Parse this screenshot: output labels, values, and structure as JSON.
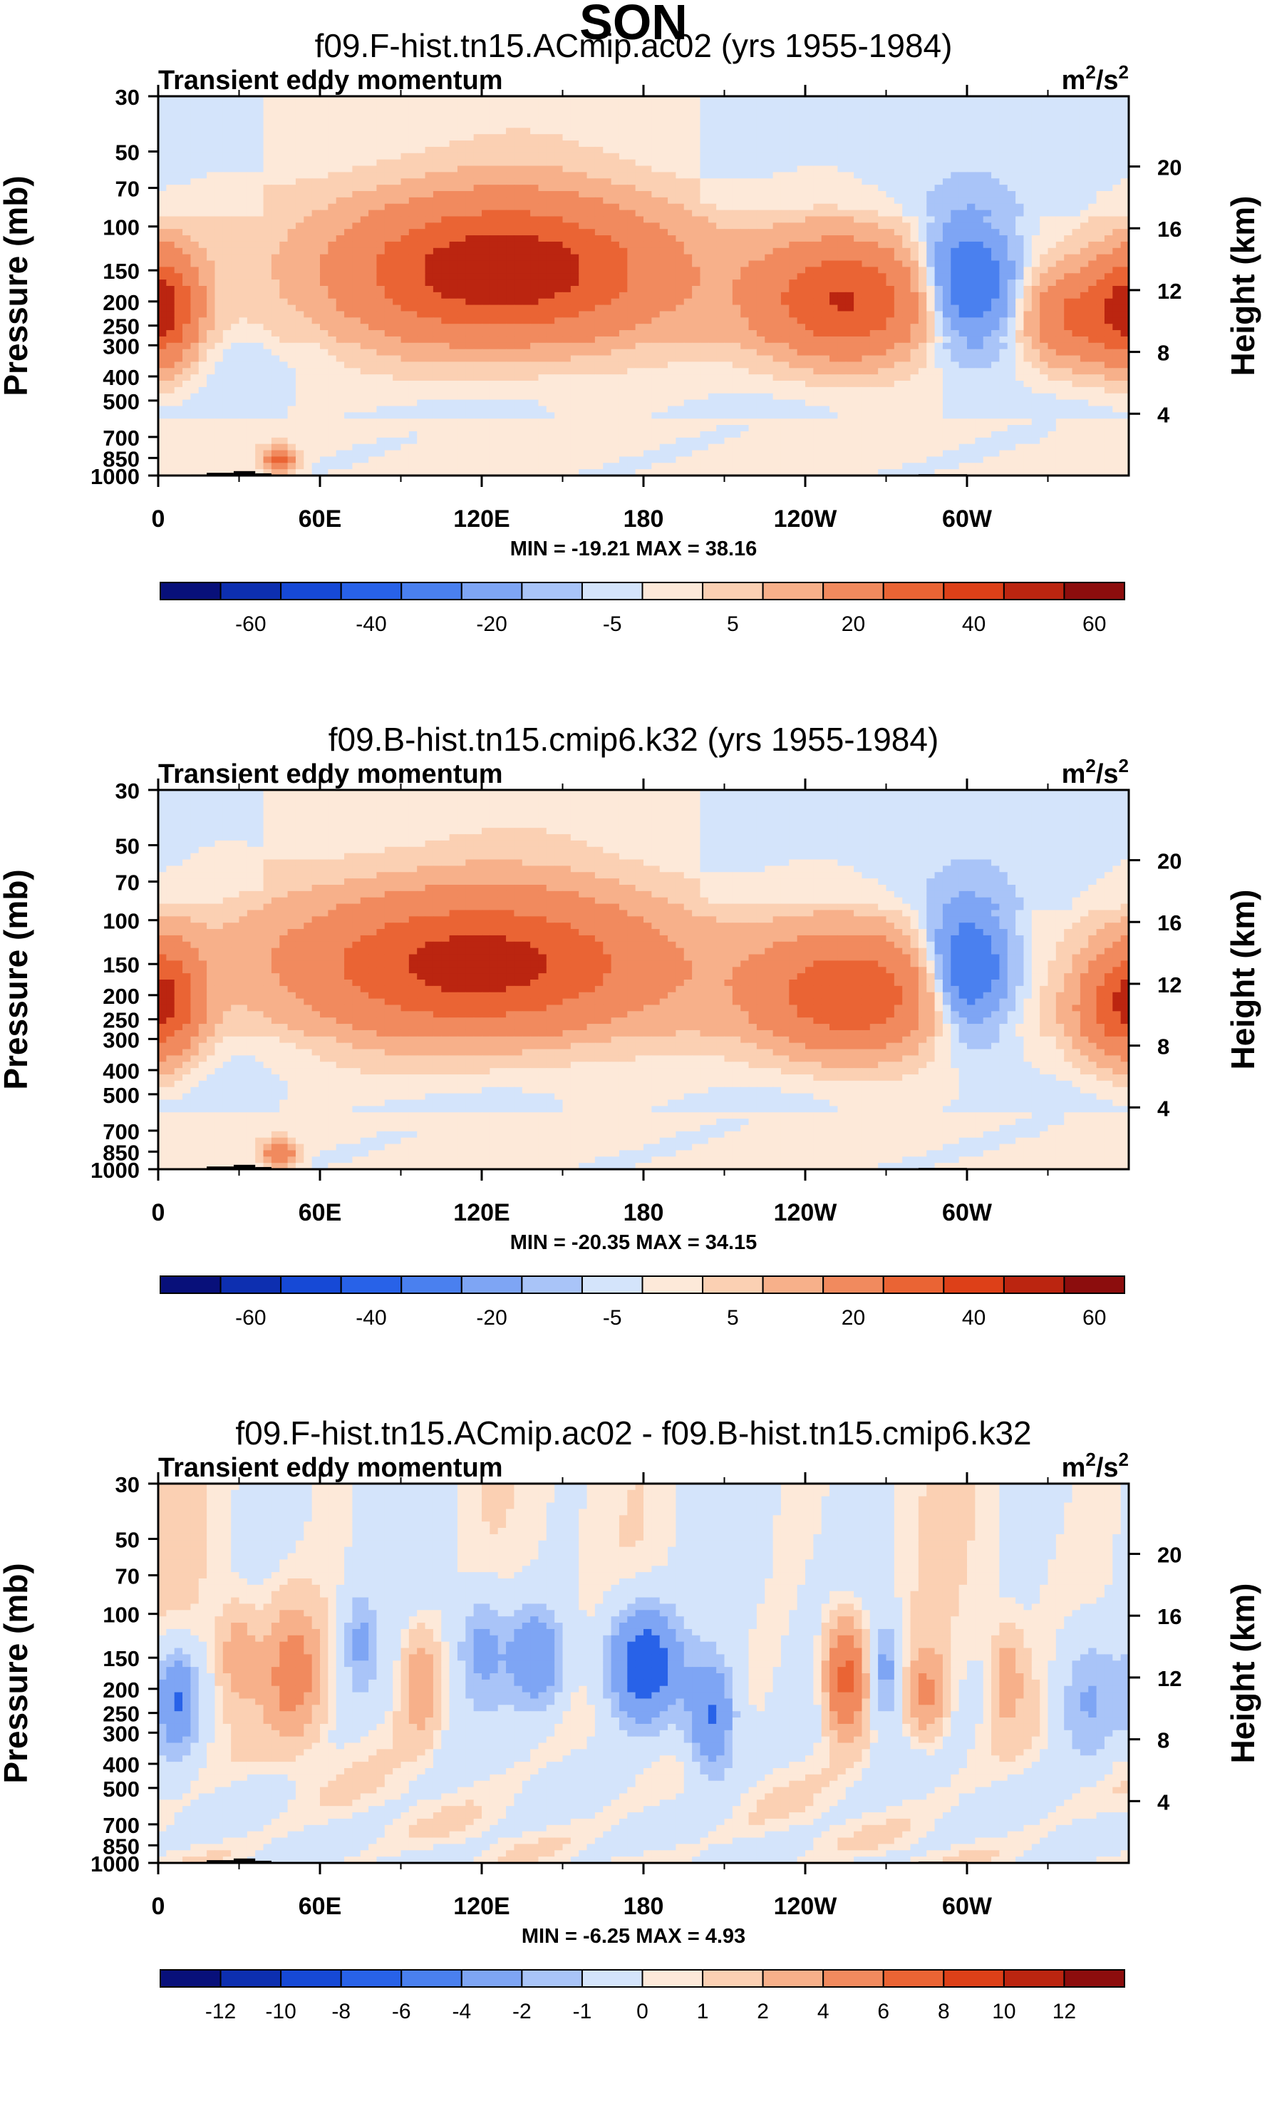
{
  "figure_title": "SON",
  "colors": {
    "blue_scale": [
      "#08107a",
      "#0d2fb0",
      "#1649d6",
      "#2862e8",
      "#4a80ef",
      "#7ea5f4",
      "#a9c4f8",
      "#d4e4fb"
    ],
    "red_scale": [
      "#fde9d9",
      "#fbd0b3",
      "#f7b08a",
      "#f18a5e",
      "#ea6434",
      "#dd4018",
      "#bb2510",
      "#8c0d0d"
    ],
    "frame": "#000000",
    "topography": "#000000"
  },
  "chart_data": [
    {
      "type": "contour",
      "panel_title": "f09.F-hist.tn15.ACmip.ac02 (yrs 1955-1984)",
      "left_title": "Transient eddy momentum",
      "units_base": "m",
      "units_sup1": "2",
      "units_mid": "/s",
      "units_sup2": "2",
      "ylabel": "Pressure (mb)",
      "y2label": "Height (km)",
      "xlabel": "",
      "x_ticks": [
        "0",
        "60E",
        "120E",
        "180",
        "120W",
        "60W"
      ],
      "y_ticks": [
        "30",
        "50",
        "70",
        "100",
        "150",
        "200",
        "250",
        "300",
        "400",
        "500",
        "700",
        "850",
        "1000"
      ],
      "y_tick_values": [
        30,
        50,
        70,
        100,
        150,
        200,
        250,
        300,
        400,
        500,
        700,
        850,
        1000
      ],
      "height_ticks": [
        "20",
        "16",
        "12",
        "8",
        "4"
      ],
      "height_tick_values": [
        20,
        16,
        12,
        8,
        4
      ],
      "xlim": [
        0,
        360
      ],
      "ylim": [
        1000,
        30
      ],
      "min_max_text": "MIN = -19.21   MAX =  38.16",
      "min": -19.21,
      "max": 38.16,
      "colorbar_labels": [
        "-60",
        "-40",
        "-20",
        "-5",
        "5",
        "20",
        "40",
        "60"
      ],
      "features": [
        {
          "lon": 128,
          "p": 150,
          "amp": 38,
          "sx": 42,
          "sy": 0.45
        },
        {
          "lon": 255,
          "p": 200,
          "amp": 30,
          "sx": 22,
          "sy": 0.38
        },
        {
          "lon": 3,
          "p": 200,
          "amp": 20,
          "sx": 9,
          "sy": 0.35
        },
        {
          "lon": 357,
          "p": 230,
          "amp": 18,
          "sx": 10,
          "sy": 0.35
        },
        {
          "lon": 337,
          "p": 230,
          "amp": 18,
          "sx": 10,
          "sy": 0.3
        },
        {
          "lon": 300,
          "p": 170,
          "amp": -19,
          "sx": 12,
          "sy": 0.4
        },
        {
          "lon": 45,
          "p": 870,
          "amp": 22,
          "sx": 4,
          "sy": 0.08
        }
      ]
    },
    {
      "type": "contour",
      "panel_title": "f09.B-hist.tn15.cmip6.k32 (yrs 1955-1984)",
      "left_title": "Transient eddy momentum",
      "units_base": "m",
      "units_sup1": "2",
      "units_mid": "/s",
      "units_sup2": "2",
      "ylabel": "Pressure (mb)",
      "y2label": "Height (km)",
      "xlabel": "",
      "x_ticks": [
        "0",
        "60E",
        "120E",
        "180",
        "120W",
        "60W"
      ],
      "y_ticks": [
        "30",
        "50",
        "70",
        "100",
        "150",
        "200",
        "250",
        "300",
        "400",
        "500",
        "700",
        "850",
        "1000"
      ],
      "y_tick_values": [
        30,
        50,
        70,
        100,
        150,
        200,
        250,
        300,
        400,
        500,
        700,
        850,
        1000
      ],
      "height_ticks": [
        "20",
        "16",
        "12",
        "8",
        "4"
      ],
      "height_tick_values": [
        20,
        16,
        12,
        8,
        4
      ],
      "xlim": [
        0,
        360
      ],
      "ylim": [
        1000,
        30
      ],
      "min_max_text": "MIN = -20.35   MAX =  34.15",
      "min": -20.35,
      "max": 34.15,
      "colorbar_labels": [
        "-60",
        "-40",
        "-20",
        "-5",
        "5",
        "20",
        "40",
        "60"
      ],
      "features": [
        {
          "lon": 118,
          "p": 150,
          "amp": 34,
          "sx": 48,
          "sy": 0.45
        },
        {
          "lon": 257,
          "p": 200,
          "amp": 28,
          "sx": 24,
          "sy": 0.38
        },
        {
          "lon": 3,
          "p": 200,
          "amp": 20,
          "sx": 9,
          "sy": 0.35
        },
        {
          "lon": 355,
          "p": 230,
          "amp": 16,
          "sx": 12,
          "sy": 0.35
        },
        {
          "lon": 300,
          "p": 160,
          "amp": -20,
          "sx": 11,
          "sy": 0.4
        },
        {
          "lon": 45,
          "p": 870,
          "amp": 20,
          "sx": 4,
          "sy": 0.08
        }
      ]
    },
    {
      "type": "contour",
      "panel_title": "f09.F-hist.tn15.ACmip.ac02 - f09.B-hist.tn15.cmip6.k32",
      "left_title": "Transient eddy momentum",
      "units_base": "m",
      "units_sup1": "2",
      "units_mid": "/s",
      "units_sup2": "2",
      "ylabel": "Pressure (mb)",
      "y2label": "Height (km)",
      "xlabel": "",
      "x_ticks": [
        "0",
        "60E",
        "120E",
        "180",
        "120W",
        "60W"
      ],
      "y_ticks": [
        "30",
        "50",
        "70",
        "100",
        "150",
        "200",
        "250",
        "300",
        "400",
        "500",
        "700",
        "850",
        "1000"
      ],
      "y_tick_values": [
        30,
        50,
        70,
        100,
        150,
        200,
        250,
        300,
        400,
        500,
        700,
        850,
        1000
      ],
      "height_ticks": [
        "20",
        "16",
        "12",
        "8",
        "4"
      ],
      "height_tick_values": [
        20,
        16,
        12,
        8,
        4
      ],
      "xlim": [
        0,
        360
      ],
      "ylim": [
        1000,
        30
      ],
      "min_max_text": "MIN =  -6.25   MAX =   4.93",
      "min": -6.25,
      "max": 4.93,
      "colorbar_labels": [
        "-12",
        "-10",
        "-8",
        "-6",
        "-4",
        "-2",
        "-1",
        "0",
        "1",
        "2",
        "4",
        "6",
        "8",
        "10",
        "12"
      ],
      "features": [
        {
          "lon": 180,
          "p": 160,
          "amp": -6.2,
          "sx": 9,
          "sy": 0.35
        },
        {
          "lon": 7,
          "p": 220,
          "amp": -4.2,
          "sx": 5,
          "sy": 0.3
        },
        {
          "lon": 205,
          "p": 260,
          "amp": -4.5,
          "sx": 6,
          "sy": 0.35
        },
        {
          "lon": 140,
          "p": 150,
          "amp": -3.8,
          "sx": 7,
          "sy": 0.3
        },
        {
          "lon": 120,
          "p": 140,
          "amp": -2.5,
          "sx": 6,
          "sy": 0.35
        },
        {
          "lon": 75,
          "p": 130,
          "amp": -2.2,
          "sx": 4,
          "sy": 0.3
        },
        {
          "lon": 270,
          "p": 170,
          "amp": -2.5,
          "sx": 4,
          "sy": 0.3
        },
        {
          "lon": 345,
          "p": 220,
          "amp": -2.2,
          "sx": 8,
          "sy": 0.4
        },
        {
          "lon": 50,
          "p": 170,
          "amp": 2.6,
          "sx": 7,
          "sy": 0.4
        },
        {
          "lon": 30,
          "p": 150,
          "amp": 1.8,
          "sx": 5,
          "sy": 0.3
        },
        {
          "lon": 255,
          "p": 180,
          "amp": 4.9,
          "sx": 5,
          "sy": 0.35
        },
        {
          "lon": 285,
          "p": 210,
          "amp": 2.2,
          "sx": 5,
          "sy": 0.3
        },
        {
          "lon": 97,
          "p": 190,
          "amp": 1.9,
          "sx": 5,
          "sy": 0.35
        },
        {
          "lon": 315,
          "p": 180,
          "amp": 1.6,
          "sx": 4,
          "sy": 0.3
        }
      ]
    }
  ]
}
